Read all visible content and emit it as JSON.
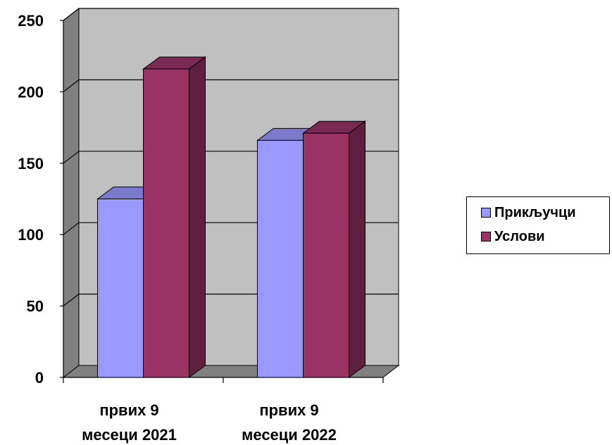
{
  "chart_data": {
    "type": "bar",
    "categories": [
      [
        "првих 9",
        "месеци 2021"
      ],
      [
        "првих 9",
        "месеци 2022"
      ]
    ],
    "series": [
      {
        "name": "Прикључци",
        "values": [
          125,
          166
        ],
        "color": "#9999FF"
      },
      {
        "name": "Услови",
        "values": [
          216,
          171
        ],
        "color": "#993366"
      }
    ],
    "y_ticks": [
      "0",
      "50",
      "100",
      "150",
      "200",
      "250"
    ],
    "ylim": [
      0,
      250
    ],
    "grid": true,
    "legend": "right",
    "style": "3d-clustered-column",
    "wall_color": "#C0C0C0",
    "side_wall_color": "#808080"
  }
}
